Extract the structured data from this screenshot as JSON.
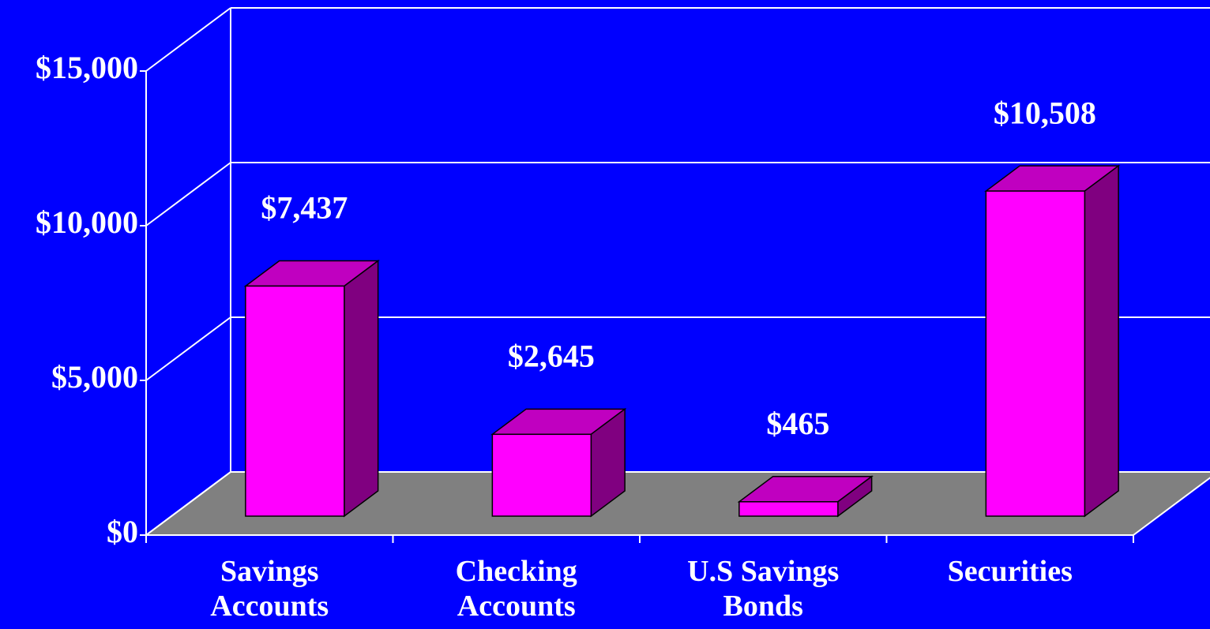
{
  "chart_data": {
    "type": "bar3d",
    "categories": [
      "Savings Accounts",
      "Checking Accounts",
      "U.S Savings Bonds",
      "Securities"
    ],
    "values": [
      7437,
      2645,
      465,
      10508
    ],
    "value_labels": [
      "$7,437",
      "$2,645",
      "$465",
      "$10,508"
    ],
    "color": "#ff00ff",
    "ylim": [
      0,
      15000
    ],
    "yticks": [
      {
        "value": 0,
        "label": "$0"
      },
      {
        "value": 5000,
        "label": "$5,000"
      },
      {
        "value": 10000,
        "label": "$10,000"
      },
      {
        "value": 15000,
        "label": "$15,000"
      }
    ],
    "grid": true
  }
}
